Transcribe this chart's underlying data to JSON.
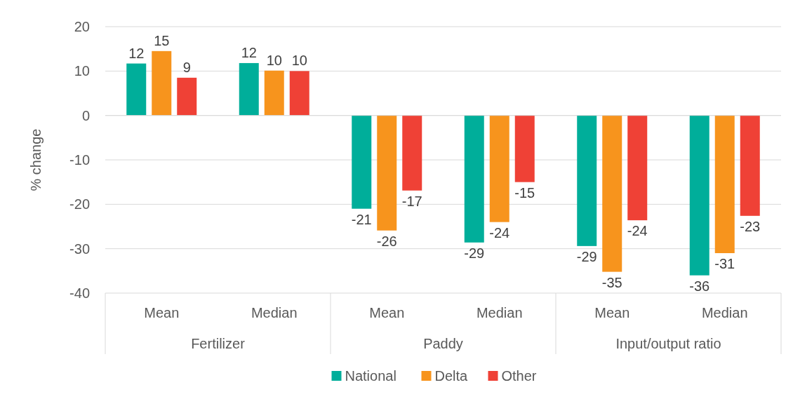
{
  "chart_data": {
    "type": "bar",
    "ylabel": "% change",
    "categories": [
      "Mean",
      "Median",
      "Mean",
      "Median",
      "Mean",
      "Median"
    ],
    "annotations": [
      "Fertilizer",
      "Paddy",
      "Input/output ratio"
    ],
    "series": [
      {
        "name": "National",
        "color": "#00ae9a",
        "values": [
          11.7,
          11.8,
          -21.0,
          -28.6,
          -29.4,
          -36.0
        ],
        "value_labels": [
          "12",
          "12",
          "-21",
          "-29",
          "-29",
          "-36"
        ]
      },
      {
        "name": "Delta",
        "color": "#f7941d",
        "values": [
          14.5,
          10.1,
          -25.9,
          -24.0,
          -35.2,
          -31.0
        ],
        "value_labels": [
          "15",
          "10",
          "-26",
          "-24",
          "-35",
          "-31"
        ]
      },
      {
        "name": "Other",
        "color": "#ef4136",
        "values": [
          8.5,
          10.0,
          -16.9,
          -15.0,
          -23.6,
          -22.6
        ],
        "value_labels": [
          "9",
          "10",
          "-17",
          "-15",
          "-24",
          "-23"
        ]
      }
    ],
    "ylim": [
      -40,
      20
    ],
    "yticks": [
      -40,
      -30,
      -20,
      -10,
      0,
      10,
      20
    ],
    "grid": "y",
    "legend": "bottom"
  }
}
